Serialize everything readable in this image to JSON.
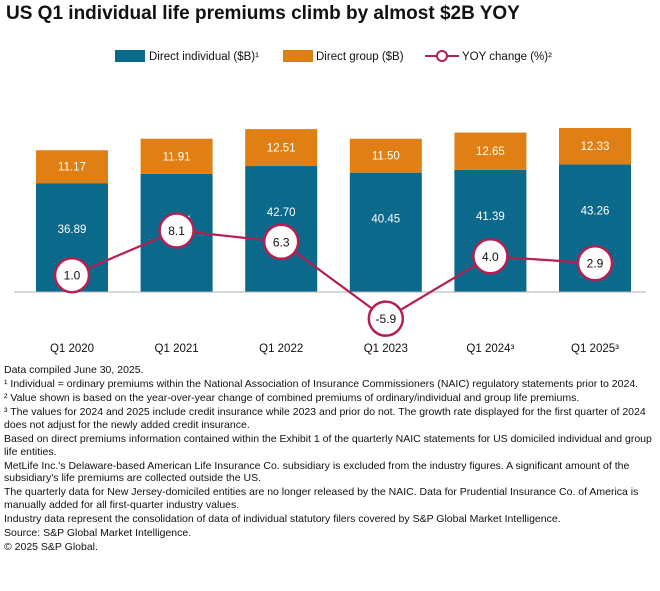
{
  "title": "US Q1 individual life premiums climb by almost $2B YOY",
  "chart_data": {
    "type": "bar",
    "stacked": true,
    "categories": [
      "Q1 2020",
      "Q1 2021",
      "Q1 2022",
      "Q1 2023",
      "Q1 2024³",
      "Q1 2025³"
    ],
    "series": [
      {
        "name": "Direct individual ($B)¹",
        "color": "#0b6a8b",
        "values": [
          36.89,
          40.04,
          42.7,
          40.45,
          41.39,
          43.26
        ],
        "labels": [
          "36.89",
          "40.04",
          "42.70",
          "40.45",
          "41.39",
          "43.26"
        ]
      },
      {
        "name": "Direct group ($B)",
        "color": "#e07f13",
        "values": [
          11.17,
          11.91,
          12.51,
          11.5,
          12.65,
          12.33
        ],
        "labels": [
          "11.17",
          "11.91",
          "12.51",
          "11.50",
          "12.65",
          "12.33"
        ]
      }
    ],
    "line_series": {
      "name": "YOY change (%)²",
      "color": "#b51f52",
      "values": [
        1.0,
        8.1,
        6.3,
        -5.9,
        4.0,
        2.9
      ],
      "labels": [
        "1.0",
        "8.1",
        "6.3",
        "-5.9",
        "4.0",
        "2.9"
      ]
    },
    "ylim": [
      0,
      60
    ],
    "legend": "top",
    "grid": false
  },
  "notes": [
    "Data compiled June 30, 2025.",
    "¹ Individual = ordinary premiums within the National Association of Insurance Commissioners (NAIC) regulatory statements prior to 2024.",
    "² Value shown is based on the year-over-year change of combined premiums of ordinary/individual and group life premiums.",
    "³ The values for 2024 and 2025 include credit insurance while 2023 and prior do not. The growth rate displayed for the first quarter of 2024 does not adjust for the newly added credit insurance.",
    "Based on direct premiums information contained within the Exhibit 1 of the quarterly NAIC statements for US domiciled individual and group life entities.",
    "MetLife Inc.'s Delaware-based American Life Insurance Co. subsidiary is excluded from the industry figures. A significant amount of the subsidiary's life premiums are collected outside the US.",
    "The quarterly data for New Jersey-domiciled entities are no longer released by the NAIC. Data for Prudential Insurance Co. of America is manually added for all first-quarter industry values.",
    "Industry data represent the consolidation of data of individual statutory filers covered by S&P Global Market Intelligence.",
    "Source: S&P Global Market Intelligence.",
    "© 2025 S&P Global."
  ]
}
